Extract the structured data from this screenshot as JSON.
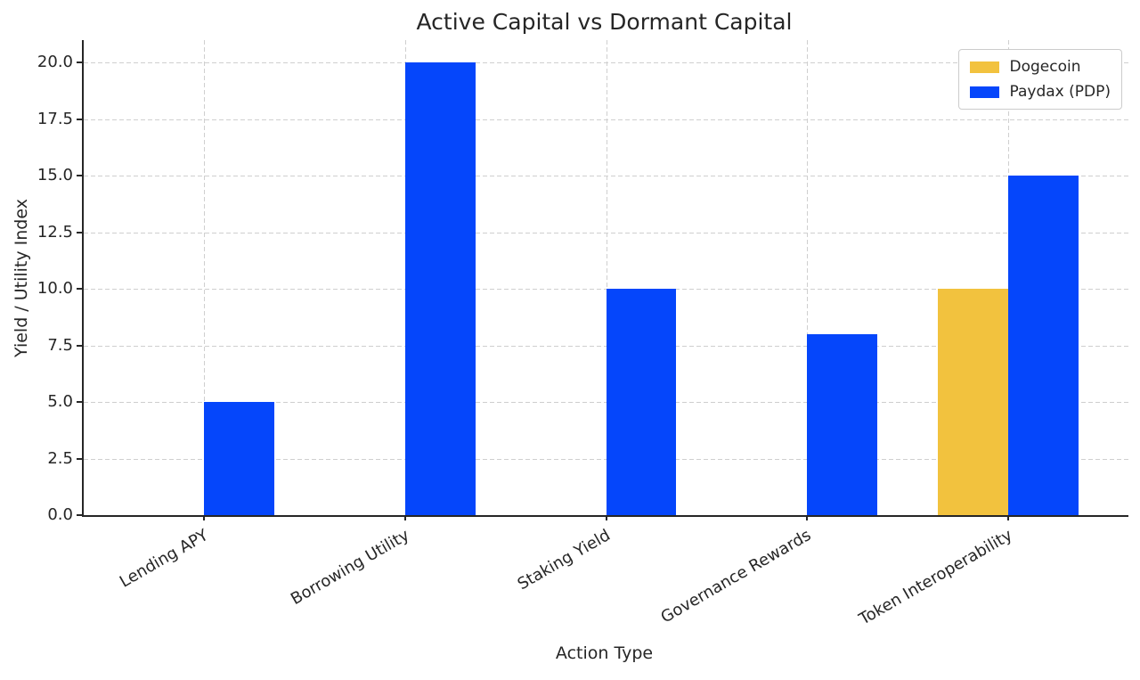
{
  "chart_data": {
    "type": "bar",
    "title": "Active Capital vs Dormant Capital",
    "xlabel": "Action Type",
    "ylabel": "Yield / Utility Index",
    "categories": [
      "Lending APY",
      "Borrowing Utility",
      "Staking Yield",
      "Governance Rewards",
      "Token Interoperability"
    ],
    "series": [
      {
        "name": "Dogecoin",
        "color": "#F2C23E",
        "values": [
          0,
          0,
          0,
          0,
          10
        ]
      },
      {
        "name": "Paydax (PDP)",
        "color": "#0546FB",
        "values": [
          5,
          20,
          10,
          8,
          15
        ]
      }
    ],
    "ylim": [
      0,
      21
    ],
    "yticks": [
      0.0,
      2.5,
      5.0,
      7.5,
      10.0,
      12.5,
      15.0,
      17.5,
      20.0
    ],
    "ytick_decimals": 1,
    "grid": true,
    "grid_style": "dashed",
    "legend_position": "upper-right",
    "x_tick_rotation_deg": 30,
    "bar_width_units": 0.35
  },
  "style": {
    "background": "#ffffff",
    "text_color": "#262626",
    "grid_color": "#cfcfcf",
    "spine_color": "#262626",
    "legend_border_color": "#cccccc"
  }
}
